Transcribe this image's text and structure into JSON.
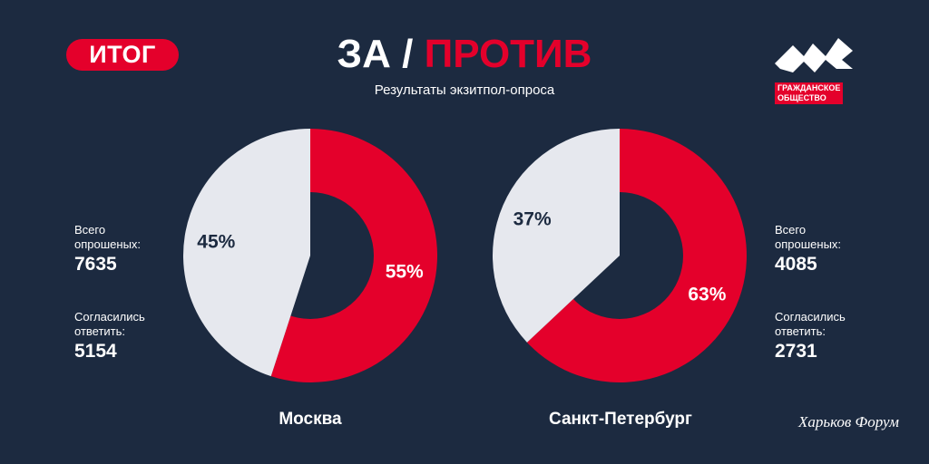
{
  "header": {
    "badge": "ИТОГ",
    "title_for": "ЗА",
    "title_sep": " / ",
    "title_against": "ПРОТИВ",
    "subtitle": "Результаты экзитпол-опроса"
  },
  "logo": {
    "line1": "ГРАЖДАНСКОЕ",
    "line2": "ОБЩЕСТВО"
  },
  "watermark": "Харьков Форум",
  "colors": {
    "background": "#1c2a40",
    "accent": "#e4002b",
    "light": "#e6e8ee",
    "hole": "#1c2a40"
  },
  "moscow": {
    "city": "Москва",
    "surveyed_label": "Всего опрошеных:",
    "surveyed": "7635",
    "answered_label": "Согласились ответить:",
    "answered": "5154"
  },
  "spb": {
    "city": "Санкт-Петербург",
    "surveyed_label": "Всего опрошеных:",
    "surveyed": "4085",
    "answered_label": "Согласились ответить:",
    "answered": "2731"
  },
  "chart_data": [
    {
      "type": "pie",
      "title": "Москва",
      "labels": [
        "",
        ""
      ],
      "values": [
        55,
        45
      ],
      "value_labels": [
        "55%",
        "45%"
      ],
      "colors": [
        "#e4002b",
        "#e6e8ee"
      ]
    },
    {
      "type": "pie",
      "title": "Санкт-Петербург",
      "labels": [
        "",
        ""
      ],
      "values": [
        63,
        37
      ],
      "value_labels": [
        "63%",
        "37%"
      ],
      "colors": [
        "#e4002b",
        "#e6e8ee"
      ]
    }
  ]
}
